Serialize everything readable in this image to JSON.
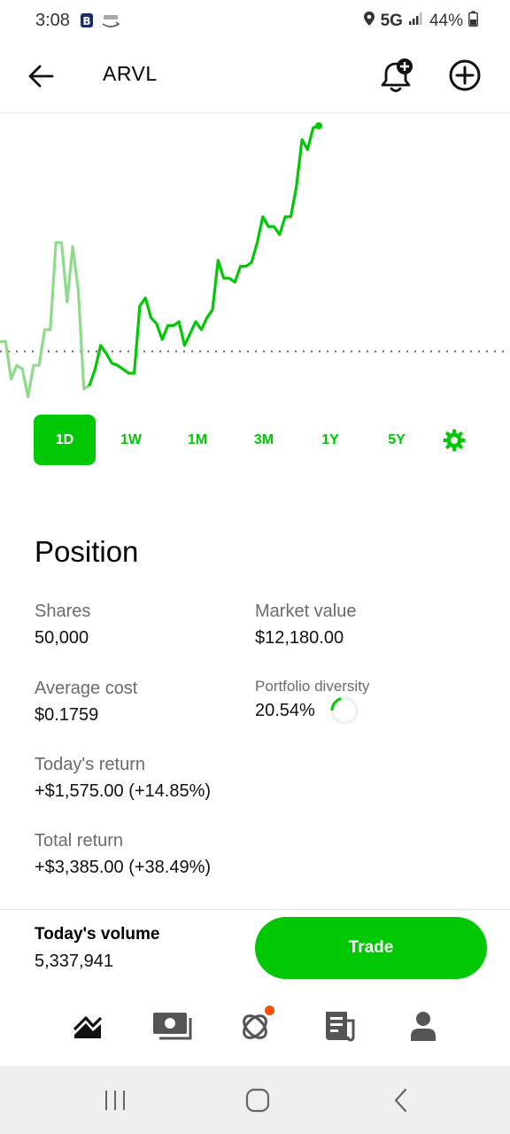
{
  "status_bar": {
    "time": "3:08",
    "network": "5G",
    "battery": "44%",
    "icons": [
      "b-app-icon",
      "relay-app-icon",
      "location-icon",
      "signal-icon",
      "battery-icon"
    ]
  },
  "header": {
    "ticker": "ARVL",
    "icons": [
      "back-arrow-icon",
      "bell-plus-icon",
      "add-circle-icon"
    ]
  },
  "chart_data": {
    "type": "line",
    "title": "",
    "xlabel": "",
    "ylabel": "",
    "series": [
      {
        "values": [
          0.21,
          0.21,
          0.191,
          0.198,
          0.196,
          0.182,
          0.198,
          0.198,
          0.216,
          0.216,
          0.26,
          0.26,
          0.23,
          0.258,
          0.236,
          0.186,
          0.188,
          0.196,
          0.208,
          0.204,
          0.199,
          0.198,
          0.196,
          0.194,
          0.194,
          0.228,
          0.232,
          0.222,
          0.219,
          0.211,
          0.218,
          0.218,
          0.22,
          0.208,
          0.214,
          0.22,
          0.216,
          0.222,
          0.226,
          0.251,
          0.242,
          0.242,
          0.24,
          0.248,
          0.248,
          0.25,
          0.26,
          0.273,
          0.268,
          0.268,
          0.264,
          0.273,
          0.273,
          0.288,
          0.312,
          0.307,
          0.318,
          0.319
        ]
      }
    ],
    "baseline": 0.205,
    "baseline_style": "dotted",
    "extended_hours_segments": [
      "pre-market",
      "regular"
    ],
    "line_colors": {
      "pre_market": "#8edb8b",
      "regular": "#00c805"
    },
    "grid": false,
    "legend": "none"
  },
  "range_tabs": {
    "items": [
      "1D",
      "1W",
      "1M",
      "3M",
      "1Y",
      "5Y"
    ],
    "active": "1D",
    "settings_icon": "gear-icon"
  },
  "position": {
    "title": "Position",
    "shares_label": "Shares",
    "shares_value": "50,000",
    "market_value_label": "Market value",
    "market_value_value": "$12,180.00",
    "avg_cost_label": "Average cost",
    "avg_cost_value": "$0.1759",
    "diversity_label": "Portfolio diversity",
    "diversity_value": "20.54%",
    "diversity_fraction": 0.2054,
    "todays_return_label": "Today's return",
    "todays_return_value": "+$1,575.00 (+14.85%)",
    "total_return_label": "Total return",
    "total_return_value": "+$3,385.00 (+38.49%)"
  },
  "volume": {
    "label": "Today's volume",
    "value": "5,337,941"
  },
  "trade_button": "Trade",
  "colors": {
    "accent": "#00c805",
    "accent_light": "#8edb8b",
    "notification": "#ff5000",
    "text_secondary": "#6b6b6b"
  },
  "tabbar": {
    "icons": [
      "chart-icon",
      "cash-icon",
      "crypto-icon",
      "news-icon",
      "account-icon"
    ],
    "notification_on": "crypto-icon"
  },
  "system_nav": {
    "icons": [
      "recents-icon",
      "home-icon",
      "back-icon"
    ]
  }
}
